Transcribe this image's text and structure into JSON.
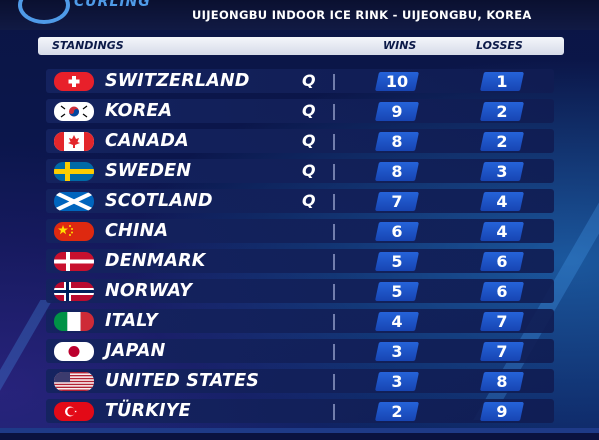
{
  "venue": "UIJEONGBU INDOOR ICE RINK - UIJEONGBU, KOREA",
  "brand": "CURLING",
  "headers": {
    "standings": "STANDINGS",
    "wins": "WINS",
    "losses": "LOSSES"
  },
  "colors": {
    "background": "#0a1240",
    "stat_box": "#2563d9",
    "row": "#16235f"
  },
  "rows": [
    {
      "country": "SWITZERLAND",
      "flag": "switzerland",
      "q": "Q",
      "wins": "10",
      "losses": "1"
    },
    {
      "country": "KOREA",
      "flag": "korea",
      "q": "Q",
      "wins": "9",
      "losses": "2"
    },
    {
      "country": "CANADA",
      "flag": "canada",
      "q": "Q",
      "wins": "8",
      "losses": "2"
    },
    {
      "country": "SWEDEN",
      "flag": "sweden",
      "q": "Q",
      "wins": "8",
      "losses": "3"
    },
    {
      "country": "SCOTLAND",
      "flag": "scotland",
      "q": "Q",
      "wins": "7",
      "losses": "4"
    },
    {
      "country": "CHINA",
      "flag": "china",
      "q": "",
      "wins": "6",
      "losses": "4"
    },
    {
      "country": "DENMARK",
      "flag": "denmark",
      "q": "",
      "wins": "5",
      "losses": "6"
    },
    {
      "country": "NORWAY",
      "flag": "norway",
      "q": "",
      "wins": "5",
      "losses": "6"
    },
    {
      "country": "ITALY",
      "flag": "italy",
      "q": "",
      "wins": "4",
      "losses": "7"
    },
    {
      "country": "JAPAN",
      "flag": "japan",
      "q": "",
      "wins": "3",
      "losses": "7"
    },
    {
      "country": "UNITED STATES",
      "flag": "usa",
      "q": "",
      "wins": "3",
      "losses": "8"
    },
    {
      "country": "TÜRKIYE",
      "flag": "turkiye",
      "q": "",
      "wins": "2",
      "losses": "9"
    }
  ]
}
